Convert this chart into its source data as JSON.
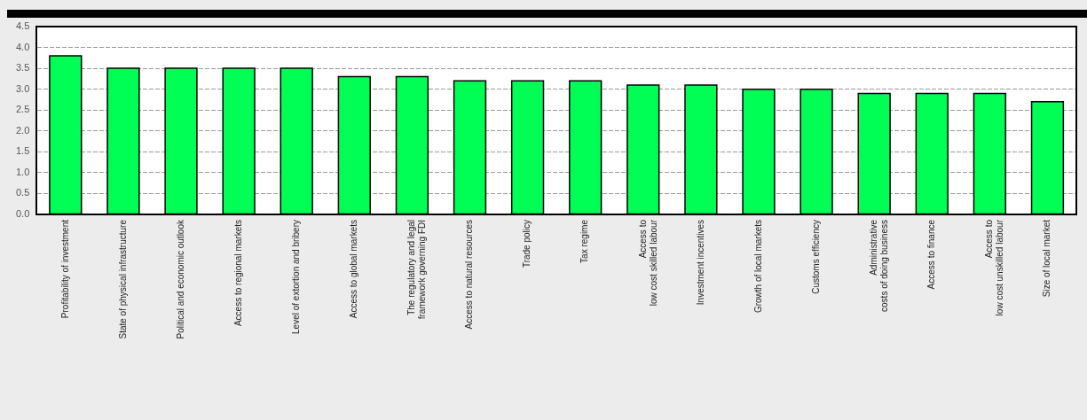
{
  "chart_data": {
    "type": "bar",
    "categories": [
      "Profitability of investment",
      "State of physical infrastructure",
      "Political and economic outlook",
      "Access to regional markets",
      "Level of extortion and bribery",
      "Access to global markets",
      "The regulatory and legal\nframework governing FDI",
      "Access to natural resources",
      "Trade policy",
      "Tax regime",
      "Access to\nlow cost skilled labour",
      "Investment incentives",
      "Growth of local markets",
      "Customs efficiency",
      "Administrative\ncosts of doing business",
      "Access to finance",
      "Access to\nlow cost unskilled labour",
      "Size of local market"
    ],
    "values": [
      3.8,
      3.5,
      3.5,
      3.5,
      3.5,
      3.3,
      3.3,
      3.2,
      3.2,
      3.2,
      3.1,
      3.1,
      3.0,
      3.0,
      2.9,
      2.9,
      2.9,
      2.7
    ],
    "color": "#00ff55",
    "ylim": [
      0,
      4.5
    ],
    "yticks": [
      {
        "value": 0,
        "label": "0.0"
      },
      0.5,
      {
        "value": 1,
        "label": "1.0"
      },
      1.5,
      {
        "value": 2,
        "label": "2.0"
      },
      2.5,
      {
        "value": 3,
        "label": "3.0"
      },
      3.5,
      {
        "value": 4,
        "label": "4.0"
      },
      4.5
    ],
    "grid": "y"
  }
}
